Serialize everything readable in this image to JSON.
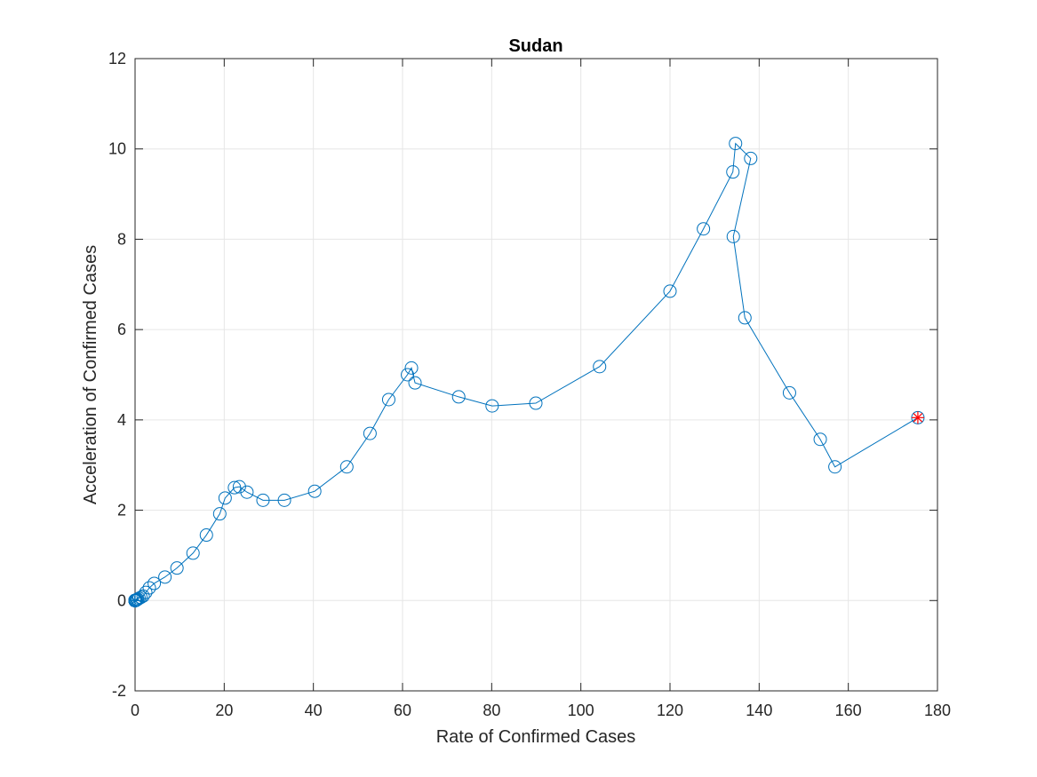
{
  "chart_data": {
    "type": "line",
    "title": "Sudan",
    "xlabel": "Rate of Confirmed Cases",
    "ylabel": "Acceleration of Confirmed Cases",
    "xlim": [
      0,
      180
    ],
    "ylim": [
      -2,
      12
    ],
    "xticks": [
      0,
      20,
      40,
      60,
      80,
      100,
      120,
      140,
      160,
      180
    ],
    "yticks": [
      -2,
      0,
      2,
      4,
      6,
      8,
      10,
      12
    ],
    "xtick_labels": [
      "0",
      "20",
      "40",
      "60",
      "80",
      "100",
      "120",
      "140",
      "160",
      "180"
    ],
    "ytick_labels": [
      "-2",
      "0",
      "2",
      "4",
      "6",
      "8",
      "10",
      "12"
    ],
    "grid": true,
    "series": [
      {
        "color": "#0072bd",
        "marker": "circle",
        "x": [
          0,
          0,
          0,
          0,
          0,
          0,
          0,
          0,
          0,
          0,
          0,
          0,
          0,
          0,
          0,
          0,
          0,
          0,
          0,
          0,
          0,
          0,
          0,
          0,
          0,
          0,
          0,
          0,
          0,
          0,
          0.1,
          0.2,
          0.4,
          0.6,
          0.9,
          1.3,
          1.8,
          2.4,
          3.2,
          4.3,
          6.7,
          9.4,
          13.0,
          16.0,
          19.0,
          20.2,
          22.3,
          23.4,
          25.1,
          28.7,
          33.5,
          40.3,
          47.5,
          52.7,
          56.9,
          61.1,
          62.0,
          62.8,
          72.6,
          80.1,
          89.9,
          104.2,
          120.0,
          127.5,
          134.1,
          134.7,
          138.1,
          134.2,
          136.8,
          146.8,
          153.7,
          157.0,
          175.6
        ],
        "y": [
          0,
          0,
          0,
          0,
          0,
          0,
          0,
          0,
          0,
          0,
          0,
          0,
          0,
          0,
          0,
          0,
          0,
          0,
          0,
          0,
          0,
          0,
          0,
          0,
          0,
          0,
          0,
          0,
          0,
          0,
          0,
          0.01,
          0.02,
          0.03,
          0.05,
          0.07,
          0.1,
          0.18,
          0.28,
          0.38,
          0.52,
          0.72,
          1.05,
          1.45,
          1.92,
          2.27,
          2.5,
          2.52,
          2.4,
          2.22,
          2.22,
          2.42,
          2.96,
          3.7,
          4.45,
          5.0,
          5.15,
          4.82,
          4.51,
          4.31,
          4.37,
          5.18,
          6.85,
          8.23,
          9.49,
          10.12,
          9.79,
          8.06,
          6.26,
          4.6,
          3.57,
          2.96,
          4.05
        ]
      }
    ],
    "highlight_point": {
      "x": 175.6,
      "y": 4.05,
      "color": "#ff0000",
      "marker": "star"
    }
  }
}
